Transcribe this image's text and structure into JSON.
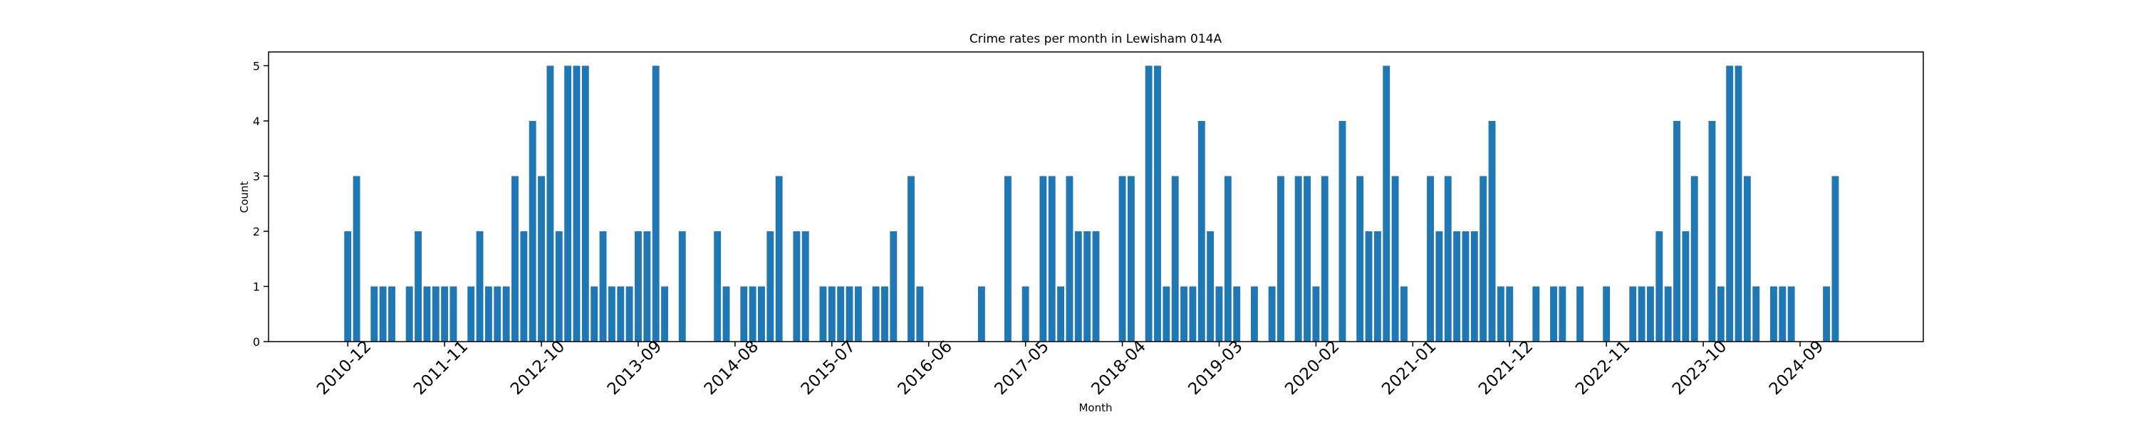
{
  "chart_data": {
    "type": "bar",
    "title": "Crime rates per month in Lewisham 014A",
    "x_label": "Month",
    "y_label": "Count",
    "color": "#1f77b4",
    "x": [
      "2010-12",
      "2011-01",
      "2011-03",
      "2011-04",
      "2011-05",
      "2011-07",
      "2011-08",
      "2011-09",
      "2011-10",
      "2011-11",
      "2011-12",
      "2012-02",
      "2012-03",
      "2012-04",
      "2012-05",
      "2012-06",
      "2012-07",
      "2012-08",
      "2012-09",
      "2012-10",
      "2012-11",
      "2012-12",
      "2013-01",
      "2013-02",
      "2013-03",
      "2013-04",
      "2013-05",
      "2013-06",
      "2013-07",
      "2013-08",
      "2013-09",
      "2013-10",
      "2013-11",
      "2013-12",
      "2014-02",
      "2014-06",
      "2014-07",
      "2014-09",
      "2014-10",
      "2014-11",
      "2014-12",
      "2015-01",
      "2015-03",
      "2015-04",
      "2015-06",
      "2015-07",
      "2015-08",
      "2015-09",
      "2015-10",
      "2015-12",
      "2016-01",
      "2016-02",
      "2016-04",
      "2016-05",
      "2016-12",
      "2017-03",
      "2017-05",
      "2017-07",
      "2017-08",
      "2017-09",
      "2017-10",
      "2017-11",
      "2017-12",
      "2018-01",
      "2018-04",
      "2018-05",
      "2018-07",
      "2018-08",
      "2018-09",
      "2018-10",
      "2018-11",
      "2018-12",
      "2019-01",
      "2019-02",
      "2019-03",
      "2019-04",
      "2019-05",
      "2019-07",
      "2019-09",
      "2019-10",
      "2019-12",
      "2020-01",
      "2020-02",
      "2020-03",
      "2020-05",
      "2020-07",
      "2020-08",
      "2020-09",
      "2020-10",
      "2020-11",
      "2020-12",
      "2021-03",
      "2021-04",
      "2021-05",
      "2021-06",
      "2021-07",
      "2021-08",
      "2021-09",
      "2021-10",
      "2021-11",
      "2021-12",
      "2022-03",
      "2022-05",
      "2022-06",
      "2022-08",
      "2022-11",
      "2023-02",
      "2023-03",
      "2023-04",
      "2023-05",
      "2023-06",
      "2023-07",
      "2023-08",
      "2023-09",
      "2023-11",
      "2023-12",
      "2024-01",
      "2024-02",
      "2024-03",
      "2024-04",
      "2024-06",
      "2024-07",
      "2024-08",
      "2024-12",
      "2025-01"
    ],
    "values": [
      2,
      3,
      1,
      1,
      1,
      1,
      2,
      1,
      1,
      1,
      1,
      1,
      2,
      1,
      1,
      1,
      3,
      2,
      4,
      3,
      5,
      2,
      5,
      5,
      5,
      1,
      2,
      1,
      1,
      1,
      2,
      2,
      5,
      1,
      2,
      2,
      1,
      1,
      1,
      1,
      2,
      3,
      2,
      2,
      1,
      1,
      1,
      1,
      1,
      1,
      1,
      2,
      3,
      1,
      1,
      3,
      1,
      3,
      3,
      1,
      3,
      2,
      2,
      2,
      3,
      3,
      5,
      5,
      1,
      3,
      1,
      1,
      4,
      2,
      1,
      3,
      1,
      1,
      1,
      3,
      3,
      3,
      1,
      3,
      4,
      3,
      2,
      2,
      5,
      3,
      1,
      3,
      2,
      3,
      2,
      2,
      2,
      3,
      4,
      1,
      1,
      1,
      1,
      1,
      1,
      1,
      1,
      1,
      1,
      2,
      1,
      4,
      2,
      3,
      4,
      1,
      5,
      5,
      3,
      1,
      1,
      1,
      1,
      1,
      3
    ],
    "xlim": [
      "2010-03",
      "2025-11"
    ],
    "xticks": [
      "2010-12",
      "2011-11",
      "2012-10",
      "2013-09",
      "2014-08",
      "2015-07",
      "2016-06",
      "2017-05",
      "2018-04",
      "2019-03",
      "2020-02",
      "2021-01",
      "2021-12",
      "2022-11",
      "2023-10",
      "2024-09"
    ],
    "ylim": [
      0,
      5.25
    ],
    "yticks": [
      0,
      1,
      2,
      3,
      4,
      5
    ]
  }
}
